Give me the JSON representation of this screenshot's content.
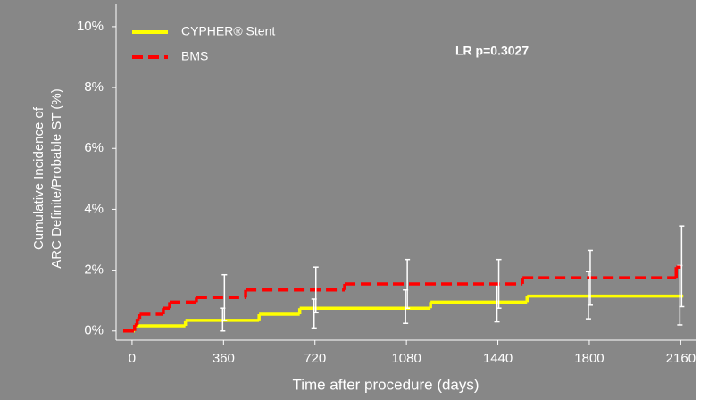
{
  "chart_data": {
    "type": "step",
    "xlabel": "Time after procedure (days)",
    "ylabel": [
      "Cumulative Incidence of",
      "ARC Definite/Probable ST (%)"
    ],
    "annotation": "LR p=0.3027",
    "xlim": [
      -63,
      2222
    ],
    "ylim": [
      -0.3,
      10.76
    ],
    "xticks": [
      0,
      360,
      720,
      1080,
      1440,
      1800,
      2160
    ],
    "yticks": [
      {
        "value": 0,
        "label": "0%"
      },
      {
        "value": 2,
        "label": "2%"
      },
      {
        "value": 4,
        "label": "4%"
      },
      {
        "value": 6,
        "label": "6%"
      },
      {
        "value": 8,
        "label": "8%"
      },
      {
        "value": 10,
        "label": "10%"
      }
    ],
    "legend": "upper left",
    "ci_x": [
      360,
      720,
      1080,
      1440,
      1800,
      2160
    ],
    "series": [
      {
        "name": "CYPHER® Stent",
        "color": "#ffff00",
        "style": "solid",
        "x": [
          -35,
          10,
          210,
          500,
          660,
          1175,
          1555,
          2170
        ],
        "values": [
          0,
          0.17,
          0.35,
          0.55,
          0.75,
          0.95,
          1.15,
          1.15
        ],
        "ci_low": [
          0,
          0.1,
          0.25,
          0.3,
          0.4,
          0.2
        ],
        "ci_high": [
          0.75,
          1.05,
          1.35,
          1.55,
          1.95,
          2.15
        ]
      },
      {
        "name": "BMS",
        "color": "#ff0000",
        "style": "dashed",
        "x": [
          -35,
          10,
          20,
          30,
          123,
          148,
          253,
          447,
          837,
          1537,
          2142,
          2160
        ],
        "values": [
          0,
          0.2,
          0.4,
          0.55,
          0.75,
          0.95,
          1.1,
          1.35,
          1.55,
          1.75,
          2.1,
          2.1
        ],
        "ci_low": [
          0.35,
          0.6,
          0.75,
          0.75,
          0.85,
          0.8
        ],
        "ci_high": [
          1.85,
          2.1,
          2.35,
          2.35,
          2.65,
          3.45
        ]
      }
    ]
  }
}
